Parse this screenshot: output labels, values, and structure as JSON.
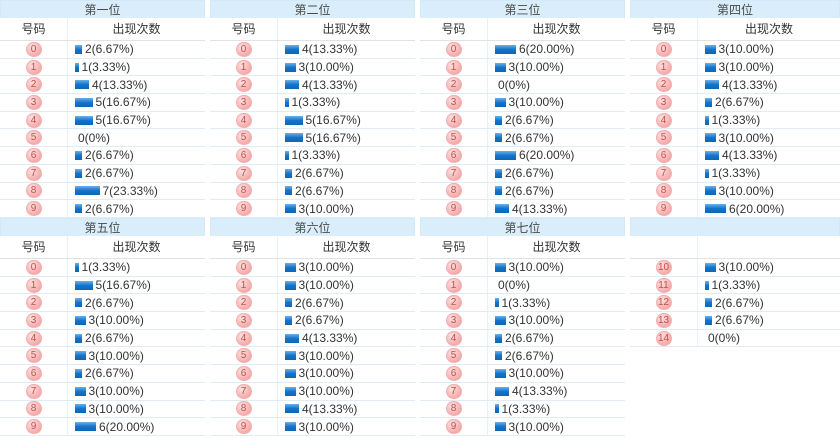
{
  "labels": {
    "number_header": "号码",
    "count_header": "出现次数"
  },
  "colors": {
    "header_bg": "#d9eefa",
    "bar_blue": "#1474ca",
    "badge_pink": "#f5abab",
    "badge_text": "#bf4f4a",
    "row_border": "#dfecf6"
  },
  "panels": [
    {
      "title": "第一位",
      "headers": [
        "号码",
        "出现次数"
      ],
      "rows": [
        {
          "num": "0",
          "count": 2,
          "text": "2(6.67%)"
        },
        {
          "num": "1",
          "count": 1,
          "text": "1(3.33%)"
        },
        {
          "num": "2",
          "count": 4,
          "text": "4(13.33%)"
        },
        {
          "num": "3",
          "count": 5,
          "text": "5(16.67%)"
        },
        {
          "num": "4",
          "count": 5,
          "text": "5(16.67%)"
        },
        {
          "num": "5",
          "count": 0,
          "text": "0(0%)"
        },
        {
          "num": "6",
          "count": 2,
          "text": "2(6.67%)"
        },
        {
          "num": "7",
          "count": 2,
          "text": "2(6.67%)"
        },
        {
          "num": "8",
          "count": 7,
          "text": "7(23.33%)"
        },
        {
          "num": "9",
          "count": 2,
          "text": "2(6.67%)"
        }
      ]
    },
    {
      "title": "第二位",
      "headers": [
        "号码",
        "出现次数"
      ],
      "rows": [
        {
          "num": "0",
          "count": 4,
          "text": "4(13.33%)"
        },
        {
          "num": "1",
          "count": 3,
          "text": "3(10.00%)"
        },
        {
          "num": "2",
          "count": 4,
          "text": "4(13.33%)"
        },
        {
          "num": "3",
          "count": 1,
          "text": "1(3.33%)"
        },
        {
          "num": "4",
          "count": 5,
          "text": "5(16.67%)"
        },
        {
          "num": "5",
          "count": 5,
          "text": "5(16.67%)"
        },
        {
          "num": "6",
          "count": 1,
          "text": "1(3.33%)"
        },
        {
          "num": "7",
          "count": 2,
          "text": "2(6.67%)"
        },
        {
          "num": "8",
          "count": 2,
          "text": "2(6.67%)"
        },
        {
          "num": "9",
          "count": 3,
          "text": "3(10.00%)"
        }
      ]
    },
    {
      "title": "第三位",
      "headers": [
        "号码",
        "出现次数"
      ],
      "rows": [
        {
          "num": "0",
          "count": 6,
          "text": "6(20.00%)"
        },
        {
          "num": "1",
          "count": 3,
          "text": "3(10.00%)"
        },
        {
          "num": "2",
          "count": 0,
          "text": "0(0%)"
        },
        {
          "num": "3",
          "count": 3,
          "text": "3(10.00%)"
        },
        {
          "num": "4",
          "count": 2,
          "text": "2(6.67%)"
        },
        {
          "num": "5",
          "count": 2,
          "text": "2(6.67%)"
        },
        {
          "num": "6",
          "count": 6,
          "text": "6(20.00%)"
        },
        {
          "num": "7",
          "count": 2,
          "text": "2(6.67%)"
        },
        {
          "num": "8",
          "count": 2,
          "text": "2(6.67%)"
        },
        {
          "num": "9",
          "count": 4,
          "text": "4(13.33%)"
        }
      ]
    },
    {
      "title": "第四位",
      "headers": [
        "号码",
        "出现次数"
      ],
      "rows": [
        {
          "num": "0",
          "count": 3,
          "text": "3(10.00%)"
        },
        {
          "num": "1",
          "count": 3,
          "text": "3(10.00%)"
        },
        {
          "num": "2",
          "count": 4,
          "text": "4(13.33%)"
        },
        {
          "num": "3",
          "count": 2,
          "text": "2(6.67%)"
        },
        {
          "num": "4",
          "count": 1,
          "text": "1(3.33%)"
        },
        {
          "num": "5",
          "count": 3,
          "text": "3(10.00%)"
        },
        {
          "num": "6",
          "count": 4,
          "text": "4(13.33%)"
        },
        {
          "num": "7",
          "count": 1,
          "text": "1(3.33%)"
        },
        {
          "num": "8",
          "count": 3,
          "text": "3(10.00%)"
        },
        {
          "num": "9",
          "count": 6,
          "text": "6(20.00%)"
        }
      ]
    },
    {
      "title": "第五位",
      "headers": [
        "号码",
        "出现次数"
      ],
      "rows": [
        {
          "num": "0",
          "count": 1,
          "text": "1(3.33%)"
        },
        {
          "num": "1",
          "count": 5,
          "text": "5(16.67%)"
        },
        {
          "num": "2",
          "count": 2,
          "text": "2(6.67%)"
        },
        {
          "num": "3",
          "count": 3,
          "text": "3(10.00%)"
        },
        {
          "num": "4",
          "count": 2,
          "text": "2(6.67%)"
        },
        {
          "num": "5",
          "count": 3,
          "text": "3(10.00%)"
        },
        {
          "num": "6",
          "count": 2,
          "text": "2(6.67%)"
        },
        {
          "num": "7",
          "count": 3,
          "text": "3(10.00%)"
        },
        {
          "num": "8",
          "count": 3,
          "text": "3(10.00%)"
        },
        {
          "num": "9",
          "count": 6,
          "text": "6(20.00%)"
        }
      ]
    },
    {
      "title": "第六位",
      "headers": [
        "号码",
        "出现次数"
      ],
      "rows": [
        {
          "num": "0",
          "count": 3,
          "text": "3(10.00%)"
        },
        {
          "num": "1",
          "count": 3,
          "text": "3(10.00%)"
        },
        {
          "num": "2",
          "count": 2,
          "text": "2(6.67%)"
        },
        {
          "num": "3",
          "count": 2,
          "text": "2(6.67%)"
        },
        {
          "num": "4",
          "count": 4,
          "text": "4(13.33%)"
        },
        {
          "num": "5",
          "count": 3,
          "text": "3(10.00%)"
        },
        {
          "num": "6",
          "count": 3,
          "text": "3(10.00%)"
        },
        {
          "num": "7",
          "count": 3,
          "text": "3(10.00%)"
        },
        {
          "num": "8",
          "count": 4,
          "text": "4(13.33%)"
        },
        {
          "num": "9",
          "count": 3,
          "text": "3(10.00%)"
        }
      ]
    },
    {
      "title": "第七位",
      "headers": [
        "号码",
        "出现次数"
      ],
      "rows": [
        {
          "num": "0",
          "count": 3,
          "text": "3(10.00%)"
        },
        {
          "num": "1",
          "count": 0,
          "text": "0(0%)"
        },
        {
          "num": "2",
          "count": 1,
          "text": "1(3.33%)"
        },
        {
          "num": "3",
          "count": 3,
          "text": "3(10.00%)"
        },
        {
          "num": "4",
          "count": 2,
          "text": "2(6.67%)"
        },
        {
          "num": "5",
          "count": 2,
          "text": "2(6.67%)"
        },
        {
          "num": "6",
          "count": 3,
          "text": "3(10.00%)"
        },
        {
          "num": "7",
          "count": 4,
          "text": "4(13.33%)"
        },
        {
          "num": "8",
          "count": 1,
          "text": "1(3.33%)"
        },
        {
          "num": "9",
          "count": 3,
          "text": "3(10.00%)"
        }
      ]
    },
    {
      "title": "",
      "headers": [
        "",
        ""
      ],
      "rows": [
        {
          "num": "10",
          "count": 3,
          "text": "3(10.00%)"
        },
        {
          "num": "11",
          "count": 1,
          "text": "1(3.33%)"
        },
        {
          "num": "12",
          "count": 2,
          "text": "2(6.67%)"
        },
        {
          "num": "13",
          "count": 2,
          "text": "2(6.67%)"
        },
        {
          "num": "14",
          "count": 0,
          "text": "0(0%)"
        }
      ]
    }
  ],
  "chart_data": [
    {
      "type": "bar",
      "title": "第一位",
      "xlabel": "号码",
      "ylabel": "出现次数",
      "categories": [
        "0",
        "1",
        "2",
        "3",
        "4",
        "5",
        "6",
        "7",
        "8",
        "9"
      ],
      "values": [
        2,
        1,
        4,
        5,
        5,
        0,
        2,
        2,
        7,
        2
      ],
      "percentages": [
        6.67,
        3.33,
        13.33,
        16.67,
        16.67,
        0,
        6.67,
        6.67,
        23.33,
        6.67
      ]
    },
    {
      "type": "bar",
      "title": "第二位",
      "xlabel": "号码",
      "ylabel": "出现次数",
      "categories": [
        "0",
        "1",
        "2",
        "3",
        "4",
        "5",
        "6",
        "7",
        "8",
        "9"
      ],
      "values": [
        4,
        3,
        4,
        1,
        5,
        5,
        1,
        2,
        2,
        3
      ],
      "percentages": [
        13.33,
        10.0,
        13.33,
        3.33,
        16.67,
        16.67,
        3.33,
        6.67,
        6.67,
        10.0
      ]
    },
    {
      "type": "bar",
      "title": "第三位",
      "xlabel": "号码",
      "ylabel": "出现次数",
      "categories": [
        "0",
        "1",
        "2",
        "3",
        "4",
        "5",
        "6",
        "7",
        "8",
        "9"
      ],
      "values": [
        6,
        3,
        0,
        3,
        2,
        2,
        6,
        2,
        2,
        4
      ],
      "percentages": [
        20.0,
        10.0,
        0,
        10.0,
        6.67,
        6.67,
        20.0,
        6.67,
        6.67,
        13.33
      ]
    },
    {
      "type": "bar",
      "title": "第四位",
      "xlabel": "号码",
      "ylabel": "出现次数",
      "categories": [
        "0",
        "1",
        "2",
        "3",
        "4",
        "5",
        "6",
        "7",
        "8",
        "9"
      ],
      "values": [
        3,
        3,
        4,
        2,
        1,
        3,
        4,
        1,
        3,
        6
      ],
      "percentages": [
        10.0,
        10.0,
        13.33,
        6.67,
        3.33,
        10.0,
        13.33,
        3.33,
        10.0,
        20.0
      ]
    },
    {
      "type": "bar",
      "title": "第五位",
      "xlabel": "号码",
      "ylabel": "出现次数",
      "categories": [
        "0",
        "1",
        "2",
        "3",
        "4",
        "5",
        "6",
        "7",
        "8",
        "9"
      ],
      "values": [
        1,
        5,
        2,
        3,
        2,
        3,
        2,
        3,
        3,
        6
      ],
      "percentages": [
        3.33,
        16.67,
        6.67,
        10.0,
        6.67,
        10.0,
        6.67,
        10.0,
        10.0,
        20.0
      ]
    },
    {
      "type": "bar",
      "title": "第六位",
      "xlabel": "号码",
      "ylabel": "出现次数",
      "categories": [
        "0",
        "1",
        "2",
        "3",
        "4",
        "5",
        "6",
        "7",
        "8",
        "9"
      ],
      "values": [
        3,
        3,
        2,
        2,
        4,
        3,
        3,
        3,
        4,
        3
      ],
      "percentages": [
        10.0,
        10.0,
        6.67,
        6.67,
        13.33,
        10.0,
        10.0,
        10.0,
        13.33,
        10.0
      ]
    },
    {
      "type": "bar",
      "title": "第七位",
      "xlabel": "号码",
      "ylabel": "出现次数",
      "categories": [
        "0",
        "1",
        "2",
        "3",
        "4",
        "5",
        "6",
        "7",
        "8",
        "9"
      ],
      "values": [
        3,
        0,
        1,
        3,
        2,
        2,
        3,
        4,
        1,
        3
      ],
      "percentages": [
        10.0,
        0,
        3.33,
        10.0,
        6.67,
        6.67,
        10.0,
        13.33,
        3.33,
        10.0
      ]
    },
    {
      "type": "bar",
      "title": "",
      "xlabel": "号码",
      "ylabel": "出现次数",
      "categories": [
        "10",
        "11",
        "12",
        "13",
        "14"
      ],
      "values": [
        3,
        1,
        2,
        2,
        0
      ],
      "percentages": [
        10.0,
        3.33,
        6.67,
        6.67,
        0
      ]
    }
  ]
}
